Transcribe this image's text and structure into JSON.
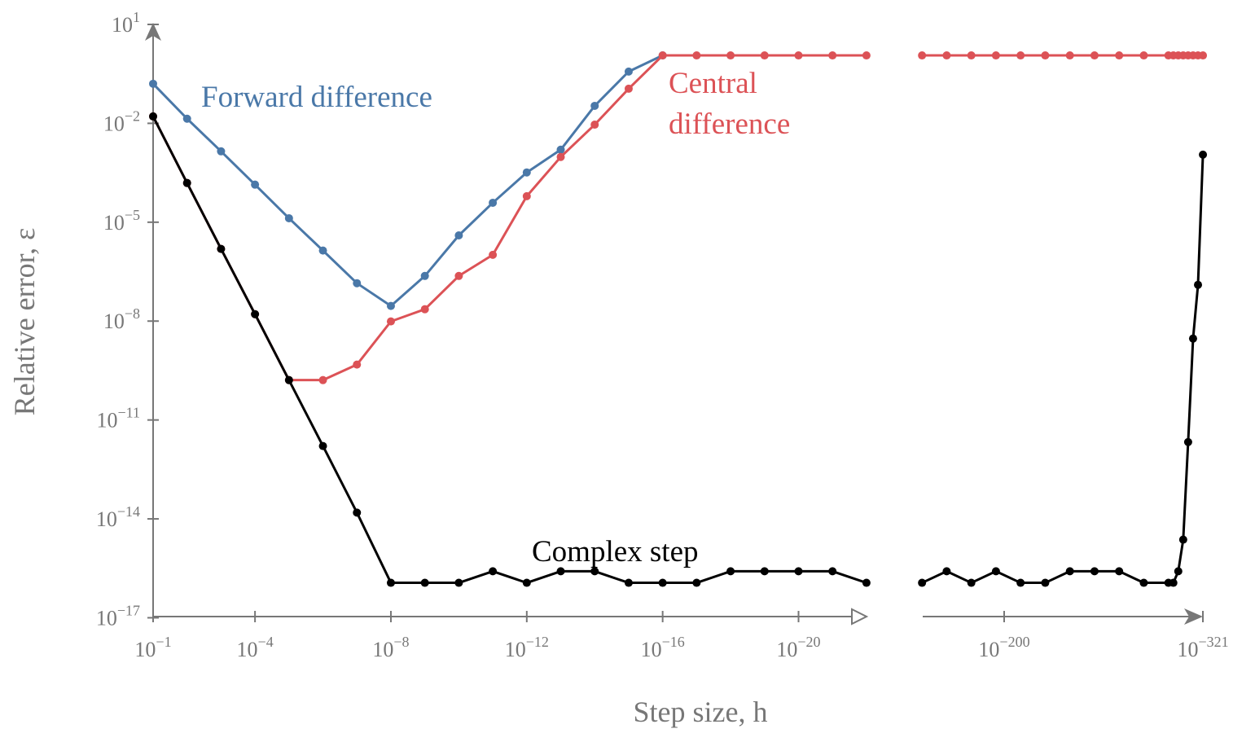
{
  "chart_data": {
    "type": "line",
    "xlabel": "Step size, h",
    "ylabel": "Relative error, ε",
    "xscale": "log (reversed, broken axis)",
    "yscale": "log",
    "ylim": [
      1e-17,
      10
    ],
    "grid": false,
    "legend": "inline labels",
    "colors": {
      "forward": "#4a78a8",
      "central": "#dc5256",
      "complex": "#000000",
      "axis": "#777777"
    },
    "y_ticks": [
      {
        "base": "10",
        "exp": "1",
        "log": 1
      },
      {
        "base": "10",
        "exp": "−2",
        "log": -2
      },
      {
        "base": "10",
        "exp": "−5",
        "log": -5
      },
      {
        "base": "10",
        "exp": "−8",
        "log": -8
      },
      {
        "base": "10",
        "exp": "−11",
        "log": -11
      },
      {
        "base": "10",
        "exp": "−14",
        "log": -14
      },
      {
        "base": "10",
        "exp": "−17",
        "log": -17
      }
    ],
    "x_ticks": [
      {
        "base": "10",
        "exp": "−1",
        "log": -1
      },
      {
        "base": "10",
        "exp": "−4",
        "log": -4
      },
      {
        "base": "10",
        "exp": "−8",
        "log": -8
      },
      {
        "base": "10",
        "exp": "−12",
        "log": -12
      },
      {
        "base": "10",
        "exp": "−16",
        "log": -16
      },
      {
        "base": "10",
        "exp": "−20",
        "log": -20
      },
      {
        "base": "10",
        "exp": "−200",
        "log": -200
      },
      {
        "base": "10",
        "exp": "−321",
        "log": -321
      }
    ],
    "x_log_h": [
      -1,
      -2,
      -3,
      -4,
      -5,
      -6,
      -7,
      -8,
      -9,
      -10,
      -11,
      -12,
      -13,
      -14,
      -15,
      -16,
      -17,
      -18,
      -19,
      -20,
      -21,
      -22,
      -150,
      -165,
      -180,
      -195,
      -210,
      -225,
      -240,
      -255,
      -270,
      -285,
      -300,
      -303,
      -306,
      -309,
      -312,
      -315,
      -318,
      -321
    ],
    "series": [
      {
        "name": "Forward difference",
        "key": "forward",
        "log_error": [
          -0.8,
          -1.86,
          -2.85,
          -3.86,
          -4.88,
          -5.86,
          -6.85,
          -7.54,
          -6.63,
          -5.4,
          -4.41,
          -3.49,
          -2.8,
          -1.47,
          -0.43,
          0.06,
          null,
          null,
          null,
          null,
          null,
          null,
          null,
          null,
          null,
          null,
          null,
          null,
          null,
          null,
          null,
          null,
          null,
          null,
          null,
          null,
          null,
          null,
          null,
          null
        ]
      },
      {
        "name": "Central difference",
        "key": "central",
        "log_error": [
          -1.79,
          -3.81,
          -5.81,
          -7.79,
          -9.79,
          -9.79,
          -9.32,
          -8.01,
          -7.64,
          -6.63,
          -5.99,
          -4.21,
          -3.02,
          -2.04,
          -0.95,
          0.06,
          0.06,
          0.06,
          0.06,
          0.06,
          0.06,
          0.06,
          0.06,
          0.06,
          0.06,
          0.06,
          0.06,
          0.06,
          0.06,
          0.06,
          0.06,
          0.06,
          0.06,
          0.06,
          0.06,
          0.06,
          0.06,
          0.06,
          0.06,
          0.06
        ]
      },
      {
        "name": "Complex step",
        "key": "complex",
        "log_error": [
          -1.79,
          -3.81,
          -5.81,
          -7.79,
          -9.79,
          -11.79,
          -13.81,
          -15.94,
          -15.94,
          -15.94,
          -15.59,
          -15.94,
          -15.59,
          -15.59,
          -15.94,
          -15.94,
          -15.94,
          -15.59,
          -15.59,
          -15.59,
          -15.59,
          -15.94,
          -15.94,
          -15.59,
          -15.94,
          -15.59,
          -15.94,
          -15.94,
          -15.59,
          -15.59,
          -15.59,
          -15.94,
          -15.94,
          -15.94,
          -15.59,
          -14.63,
          -11.67,
          -8.53,
          -6.9,
          -2.95
        ]
      }
    ],
    "annotations": {
      "forward": "Forward difference",
      "central_1": "Central",
      "central_2": "difference",
      "complex": "Complex step"
    }
  }
}
